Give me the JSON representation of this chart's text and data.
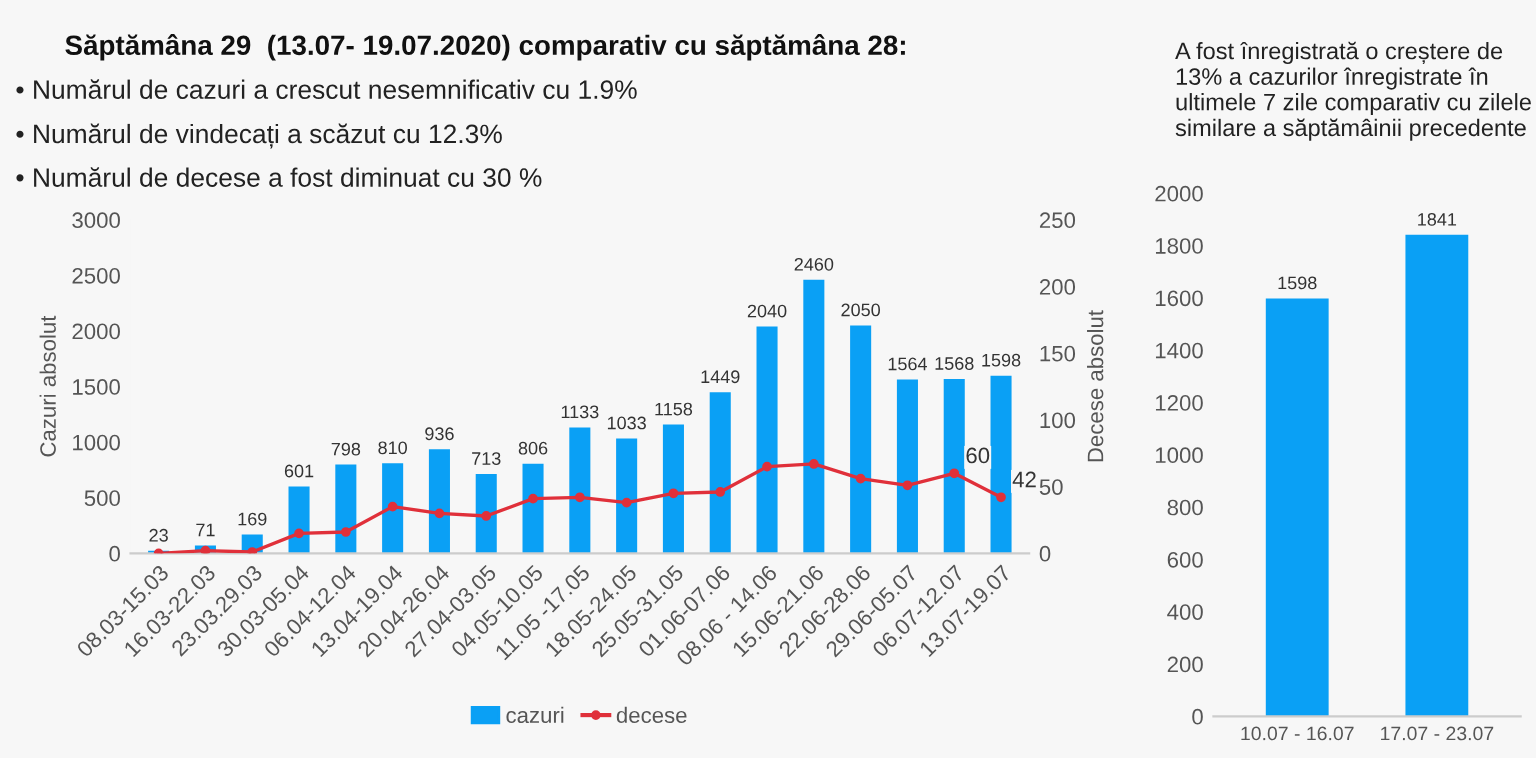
{
  "chart_data": [
    {
      "type": "bar",
      "title": "Săptămâna 29  (13.07- 19.07.2020) comparativ cu săptămâna 28:",
      "annotations": [
        "• Numărul de cazuri a crescut nesemnificativ cu 1.9%",
        "• Numărul de vindecați a scăzut cu 12.3%",
        "• Numărul de decese a fost diminuat cu 30 %"
      ],
      "categories": [
        "08.03-15.03",
        "16.03-22.03",
        "23.03.29.03",
        "30.03-05.04",
        "06.04-12.04",
        "13.04-19.04",
        "20.04-26.04",
        "27.04-03.05",
        "04.05-10.05",
        "11.05 -17.05",
        "18.05-24.05",
        "25.05-31.05",
        "01.06-07.06",
        "08.06 - 14.06",
        "15.06-21.06",
        "22.06-28.06",
        "29.06-05.07",
        "06.07-12.07",
        "13.07-19.07"
      ],
      "series": [
        {
          "name": "cazuri",
          "type": "bar",
          "color": "#0aa0f5",
          "values": [
            23,
            71,
            169,
            601,
            798,
            810,
            936,
            713,
            806,
            1133,
            1033,
            1158,
            1449,
            2040,
            2460,
            2050,
            1564,
            1568,
            1598
          ],
          "value_labels": [
            "23",
            "71",
            "169",
            "601",
            "798",
            "810",
            "936",
            "713",
            "806",
            "1133",
            "1033",
            "1158",
            "1449",
            "2040",
            "2460",
            "2050",
            "1564",
            "1568",
            "1598"
          ]
        },
        {
          "name": "decese",
          "type": "line",
          "axis": "y2",
          "color": "#e0303a",
          "marker": "circle",
          "values": [
            0,
            2,
            1,
            15,
            16,
            35,
            30,
            28,
            41,
            42,
            38,
            45,
            46,
            65,
            67,
            56,
            51,
            60,
            42
          ],
          "value_labels": [
            null,
            null,
            null,
            null,
            null,
            null,
            null,
            null,
            null,
            null,
            null,
            null,
            null,
            null,
            null,
            null,
            null,
            "60",
            "42"
          ]
        }
      ],
      "ylabel": "Cazuri absolut",
      "y2label": "Decese absolut",
      "ylim": [
        0,
        3000
      ],
      "yticks": [
        0,
        500,
        1000,
        1500,
        2000,
        2500,
        3000
      ],
      "y2lim": [
        0,
        250
      ],
      "y2ticks": [
        0,
        50,
        100,
        150,
        200,
        250
      ],
      "legend": "bottom",
      "grid": false
    },
    {
      "type": "bar",
      "title": "A fost înregistrată o creștere de 13% a cazurilor înregistrate în ultimele 7 zile comparativ cu zilele similare a săptămâinii precedente",
      "categories": [
        "10.07 - 16.07",
        "17.07 - 23.07"
      ],
      "values": [
        1598,
        1841
      ],
      "color": "#0aa0f5",
      "ylim": [
        0,
        2000
      ],
      "yticks": [
        0,
        200,
        400,
        600,
        800,
        1000,
        1200,
        1400,
        1600,
        1800,
        2000
      ],
      "data_labels": true,
      "grid": false
    }
  ]
}
